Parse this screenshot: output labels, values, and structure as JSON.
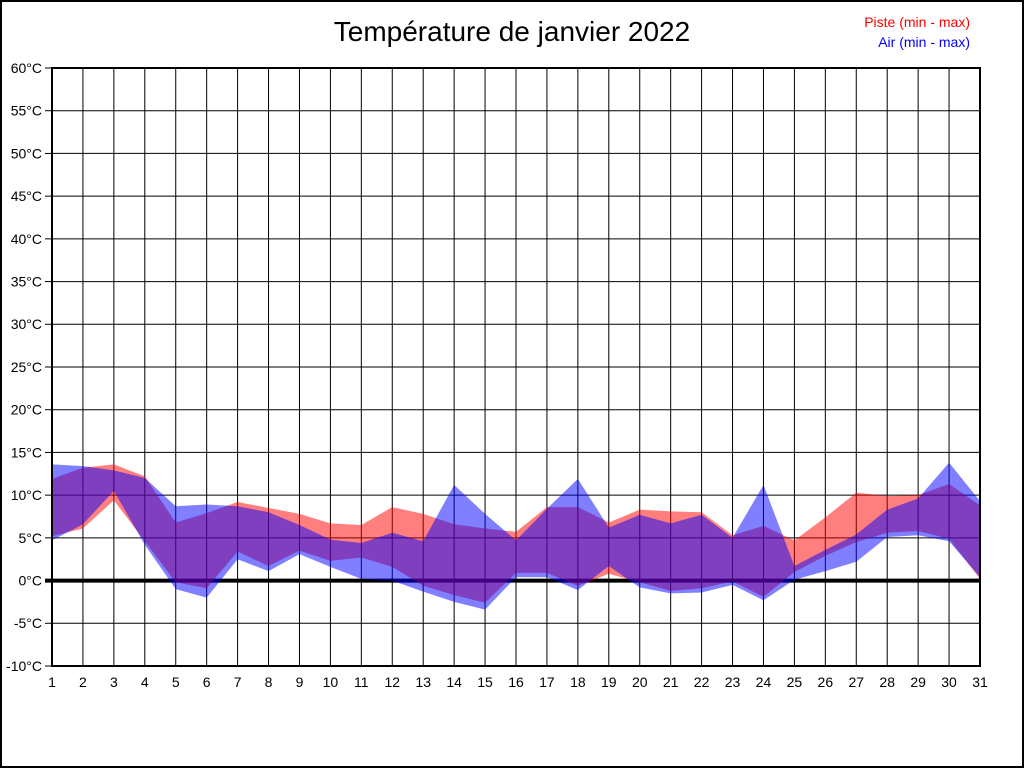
{
  "header": {
    "title": "Température de janvier 2022"
  },
  "legend": {
    "items": [
      {
        "label": "Piste (min - max)",
        "color": "#ff0000"
      },
      {
        "label": "Air (min - max)",
        "color": "#0000ff"
      }
    ],
    "position": "top-right"
  },
  "chart_data": {
    "type": "area",
    "subtype": "min-max-band",
    "title": "Température de janvier 2022",
    "xlabel": "",
    "ylabel": "",
    "x": [
      1,
      2,
      3,
      4,
      5,
      6,
      7,
      8,
      9,
      10,
      11,
      12,
      13,
      14,
      15,
      16,
      17,
      18,
      19,
      20,
      21,
      22,
      23,
      24,
      25,
      26,
      27,
      28,
      29,
      30,
      31
    ],
    "xlim": [
      1,
      31
    ],
    "ylim": [
      -10,
      60
    ],
    "ytick_step": 5,
    "ytick_suffix": "°C",
    "grid": true,
    "zero_line_bold": true,
    "background": "#ffffff",
    "grid_color": "#000000",
    "series": [
      {
        "name": "Piste (min - max)",
        "color": "#ff0000",
        "fill_opacity": 0.5,
        "min": [
          5.2,
          6.1,
          9.4,
          4.6,
          -0.2,
          -0.9,
          3.4,
          1.7,
          3.5,
          2.3,
          2.7,
          1.6,
          -0.6,
          -1.7,
          -2.6,
          0.9,
          0.9,
          -0.6,
          0.8,
          -0.2,
          -1.2,
          -0.9,
          -0.1,
          -1.9,
          1.0,
          2.9,
          4.5,
          5.6,
          5.8,
          4.9,
          0.2
        ],
        "max": [
          11.9,
          13.2,
          13.6,
          12.2,
          6.8,
          7.9,
          9.2,
          8.5,
          7.8,
          6.7,
          6.5,
          8.6,
          7.8,
          6.6,
          6.1,
          5.7,
          8.6,
          8.6,
          6.8,
          8.3,
          8.1,
          8.0,
          5.3,
          6.4,
          4.7,
          7.4,
          10.3,
          9.9,
          10.0,
          11.3,
          8.8
        ]
      },
      {
        "name": "Air (min - max)",
        "color": "#0000ff",
        "fill_opacity": 0.5,
        "min": [
          4.7,
          6.6,
          10.5,
          4.2,
          -1.0,
          -2.0,
          2.5,
          1.1,
          3.1,
          1.6,
          0.2,
          0.0,
          -1.3,
          -2.5,
          -3.4,
          0.4,
          0.4,
          -1.1,
          1.7,
          -0.8,
          -1.5,
          -1.4,
          -0.5,
          -2.3,
          0.1,
          1.1,
          2.2,
          5.1,
          5.3,
          4.6,
          0.4
        ],
        "max": [
          13.6,
          13.4,
          12.9,
          12.0,
          8.7,
          8.9,
          8.7,
          8.0,
          6.5,
          4.8,
          4.4,
          5.6,
          4.6,
          11.2,
          7.8,
          4.7,
          8.4,
          11.9,
          6.2,
          7.7,
          6.7,
          7.7,
          5.0,
          11.2,
          1.7,
          3.6,
          5.4,
          8.3,
          9.6,
          13.8,
          9.3
        ]
      }
    ]
  }
}
